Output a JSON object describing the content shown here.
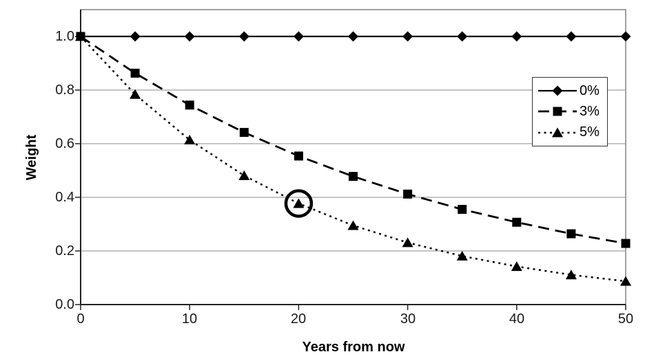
{
  "chart_data": {
    "type": "line",
    "xlabel": "Years from now",
    "ylabel": "Weight",
    "x": [
      0,
      5,
      10,
      15,
      20,
      25,
      30,
      35,
      40,
      45,
      50
    ],
    "series": [
      {
        "name": "0%",
        "marker": "diamond",
        "line_style": "solid",
        "values": [
          1.0,
          1.0,
          1.0,
          1.0,
          1.0,
          1.0,
          1.0,
          1.0,
          1.0,
          1.0,
          1.0
        ]
      },
      {
        "name": "3%",
        "marker": "square",
        "line_style": "dashed",
        "values": [
          1.0,
          0.863,
          0.744,
          0.642,
          0.554,
          0.478,
          0.412,
          0.355,
          0.307,
          0.264,
          0.228
        ]
      },
      {
        "name": "5%",
        "marker": "triangle",
        "line_style": "dotted",
        "values": [
          1.0,
          0.784,
          0.614,
          0.481,
          0.377,
          0.295,
          0.231,
          0.181,
          0.142,
          0.111,
          0.087
        ]
      }
    ],
    "annotation": {
      "type": "circle-highlight",
      "series": "5%",
      "x": 20,
      "y": 0.377
    },
    "xlim": [
      0,
      50
    ],
    "ylim": [
      0,
      1.1
    ],
    "xticks": [
      0,
      10,
      20,
      30,
      40,
      50
    ],
    "yticks": [
      0,
      0.2,
      0.4,
      0.6,
      0.8,
      1.0
    ],
    "xtick_labels": [
      "0",
      "10",
      "20",
      "30",
      "40",
      "50"
    ],
    "ytick_labels": [
      "0.0",
      "0.2",
      "0.4",
      "0.6",
      "0.8",
      "1.0"
    ],
    "grid": "horizontal",
    "legend_position": "right-inside",
    "colors": {
      "series": "#000000",
      "grid": "#a0a0a0",
      "border": "#808080",
      "background": "#ffffff"
    }
  }
}
